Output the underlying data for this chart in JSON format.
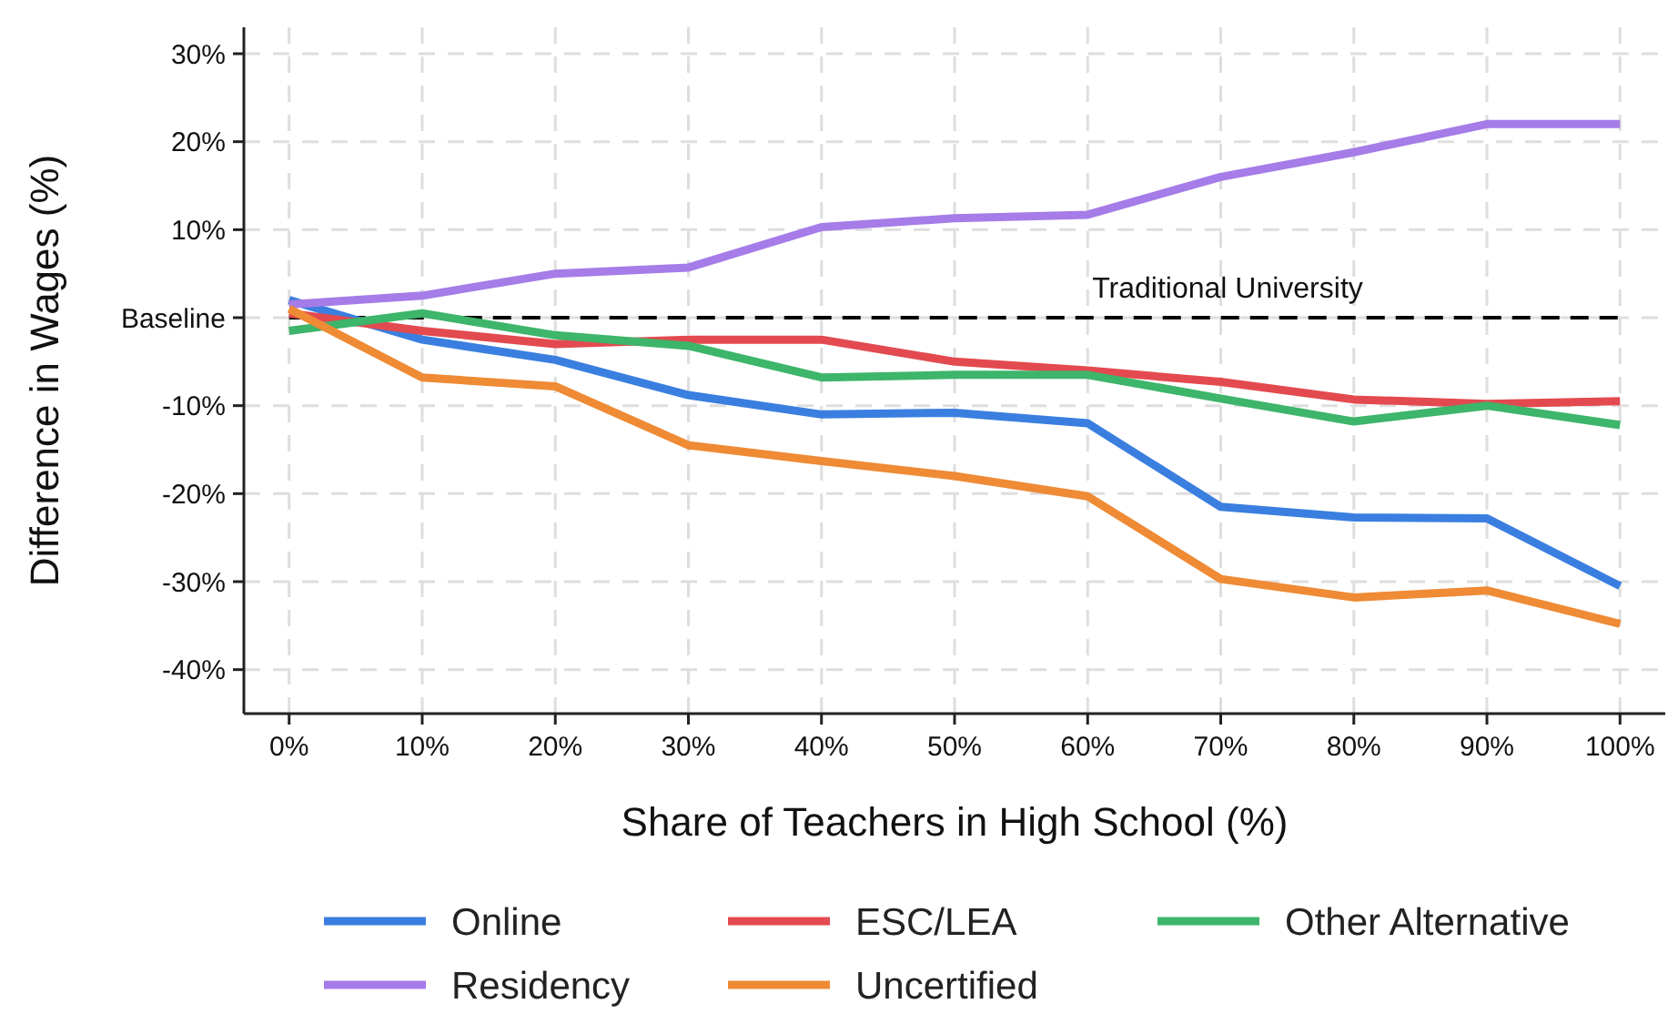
{
  "chart_data": {
    "type": "line",
    "xlabel": "Share of Teachers in High School (%)",
    "ylabel": "Difference in Wages (%)",
    "x": [
      0,
      10,
      20,
      30,
      40,
      50,
      60,
      70,
      80,
      90,
      100
    ],
    "xlim": [
      -3.4,
      103.4
    ],
    "xticks": [
      {
        "value": 0,
        "label": "0%"
      },
      {
        "value": 10,
        "label": "10%"
      },
      {
        "value": 20,
        "label": "20%"
      },
      {
        "value": 30,
        "label": "30%"
      },
      {
        "value": 40,
        "label": "40%"
      },
      {
        "value": 50,
        "label": "50%"
      },
      {
        "value": 60,
        "label": "60%"
      },
      {
        "value": 70,
        "label": "70%"
      },
      {
        "value": 80,
        "label": "80%"
      },
      {
        "value": 90,
        "label": "90%"
      },
      {
        "value": 100,
        "label": "100%"
      }
    ],
    "ylim": [
      -45,
      33
    ],
    "yticks": [
      {
        "value": -40,
        "label": "-40%"
      },
      {
        "value": -30,
        "label": "-30%"
      },
      {
        "value": -20,
        "label": "-20%"
      },
      {
        "value": -10,
        "label": "-10%"
      },
      {
        "value": 0,
        "label": "Baseline"
      },
      {
        "value": 10,
        "label": "10%"
      },
      {
        "value": 20,
        "label": "20%"
      },
      {
        "value": 30,
        "label": "30%"
      }
    ],
    "grid": true,
    "legend": "bottom",
    "marker": "none",
    "line_style": "solid",
    "ref_lines": [
      {
        "axis": "y",
        "value": 0,
        "label": "Traditional University",
        "color": "#000000",
        "line_style": "dashed"
      }
    ],
    "series": [
      {
        "name": "Online",
        "color": "#3a7fe0",
        "values": [
          2,
          -2.5,
          -4.8,
          -8.8,
          -11,
          -10.8,
          -12,
          -21.5,
          -22.7,
          -22.8,
          -30.5
        ]
      },
      {
        "name": "ESC/LEA",
        "color": "#e34a4f",
        "values": [
          0.5,
          -1.5,
          -3,
          -2.5,
          -2.5,
          -5,
          -6,
          -7.3,
          -9.3,
          -9.8,
          -9.5
        ]
      },
      {
        "name": "Other Alternative",
        "color": "#3db56a",
        "values": [
          -1.5,
          0.5,
          -2,
          -3.2,
          -6.8,
          -6.5,
          -6.5,
          -9.2,
          -11.8,
          -10,
          -12.2
        ]
      },
      {
        "name": "Residency",
        "color": "#a57ce8",
        "values": [
          1.5,
          2.5,
          5,
          5.7,
          10.3,
          11.3,
          11.7,
          16,
          18.8,
          22,
          22
        ]
      },
      {
        "name": "Uncertified",
        "color": "#ef8a35",
        "values": [
          1,
          -6.8,
          -7.8,
          -14.5,
          -16.3,
          -18,
          -20.3,
          -29.7,
          -31.8,
          -31,
          -34.8
        ]
      }
    ]
  }
}
